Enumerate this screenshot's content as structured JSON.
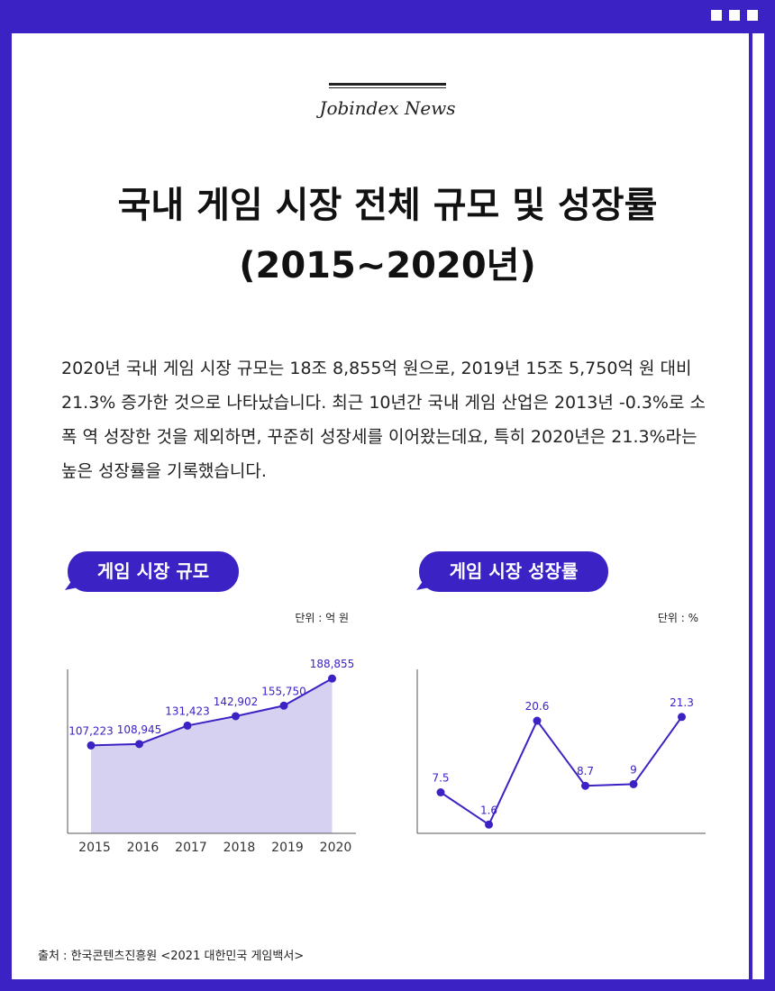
{
  "header": {
    "brand": "Jobindex News"
  },
  "title": [
    "국내 게임 시장 전체 규모 및 성장률",
    "(2015~2020년)"
  ],
  "body": "2020년 국내 게임 시장 규모는 18조 8,855억 원으로, 2019년 15조 5,750억 원 대비 21.3% 증가한 것으로 나타났습니다. 최근 10년간 국내 게임 산업은 2013년 -0.3%로 소폭 역 성장한 것을 제외하면, 꾸준히 성장세를 이어왔는데요, 특히 2020년은 21.3%라는 높은 성장률을 기록했습니다.",
  "chart_data": [
    {
      "type": "area",
      "title": "게임 시장 규모",
      "unit": "단위 : 억 원",
      "categories": [
        "2015",
        "2016",
        "2017",
        "2018",
        "2019",
        "2020"
      ],
      "values": [
        107223,
        108945,
        131423,
        142902,
        155750,
        188855
      ],
      "value_labels": [
        "107,223",
        "108,945",
        "131,423",
        "142,902",
        "155,750",
        "188,855"
      ],
      "color": "#3a22c4",
      "fill": "#d6d0f1",
      "ylim": [
        0,
        200000
      ]
    },
    {
      "type": "line",
      "title": "게임 시장 성장률",
      "unit": "단위 : %",
      "categories": [
        null,
        null,
        null,
        null,
        null,
        null
      ],
      "values": [
        7.5,
        1.6,
        20.6,
        8.7,
        9,
        21.3
      ],
      "color": "#3a22c4",
      "ylim": [
        0,
        30
      ]
    }
  ],
  "source": "출처 : 한국콘텐츠진흥원 <2021 대한민국 게임백서>"
}
